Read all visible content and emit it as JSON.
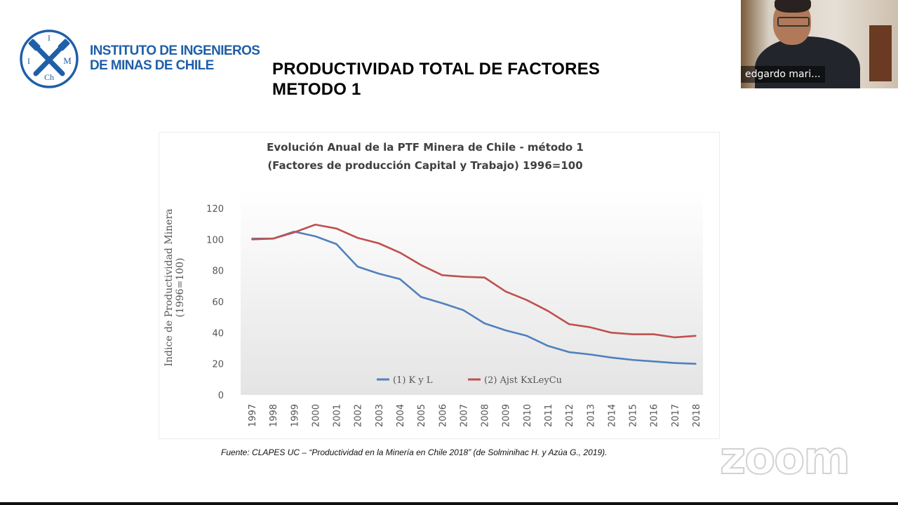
{
  "logo": {
    "emblem_letters": [
      "I",
      "I",
      "M",
      "Ch"
    ],
    "line1": "INSTITUTO DE INGENIEROS",
    "line2": "DE MINAS DE CHILE",
    "color": "#1f5fa8"
  },
  "slide": {
    "title_line1": "PRODUCTIVIDAD TOTAL DE FACTORES",
    "title_line2": "METODO 1",
    "source": "Fuente: CLAPES UC – “Productividad en la Minería en Chile 2018” (de Solminihac H. y Azúa G., 2019)."
  },
  "webcam": {
    "participant_name": "edgardo mari..."
  },
  "watermark": "zoom",
  "chart_data": {
    "type": "line",
    "title": "Evolución Anual de la PTF Minera de Chile - método 1",
    "subtitle": "(Factores de producción Capital y Trabajo) 1996=100",
    "ylabel": "Indice de Productividad Minera (1996=100)",
    "xlabel": "",
    "ylim": [
      0,
      120
    ],
    "yticks": [
      0,
      20,
      40,
      60,
      80,
      100,
      120
    ],
    "grid": false,
    "legend_position": "bottom",
    "categories": [
      "1997",
      "1998",
      "1999",
      "2000",
      "2001",
      "2002",
      "2003",
      "2004",
      "2005",
      "2006",
      "2007",
      "2008",
      "2009",
      "2010",
      "2011",
      "2012",
      "2013",
      "2014",
      "2015",
      "2016",
      "2017",
      "2018"
    ],
    "series": [
      {
        "name": "(1) K y L",
        "color": "#4f81bd",
        "values": [
          100.5,
          100.5,
          105,
          102,
          97,
          82.5,
          78,
          74.5,
          63,
          59,
          54.5,
          46,
          41.5,
          38,
          31.5,
          27.5,
          26,
          24,
          22.5,
          21.5,
          20.5,
          20
        ]
      },
      {
        "name": "(2) Ajst KxLeyCu",
        "color": "#c0504d",
        "values": [
          100,
          100.5,
          104.5,
          109.5,
          107,
          101,
          97.5,
          91.5,
          83.5,
          77,
          76,
          75.5,
          66.5,
          61,
          54,
          45.5,
          43.5,
          40,
          39,
          39,
          37,
          38
        ]
      }
    ]
  }
}
